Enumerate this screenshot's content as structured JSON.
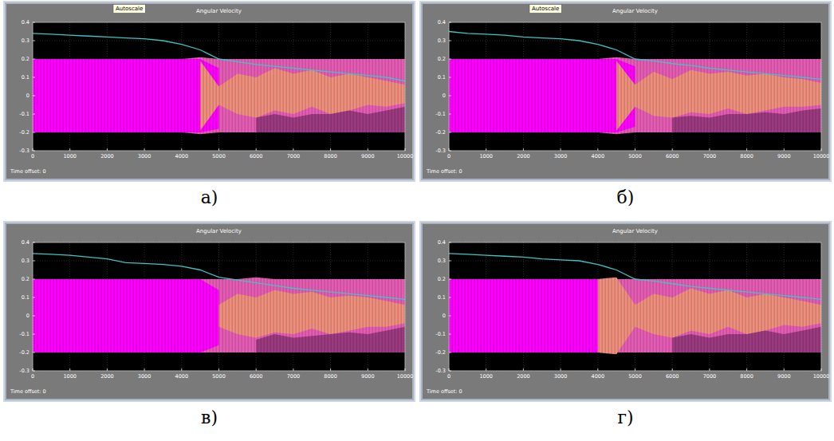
{
  "chart_data": [
    {
      "type": "line",
      "title": "Angular Velocity",
      "label": "а)",
      "annotation": "Autoscale",
      "footer_text": "Time offset:  0",
      "x": [
        0,
        500,
        1000,
        1500,
        2000,
        2500,
        3000,
        3500,
        4000,
        4500,
        5000,
        5500,
        6000,
        6500,
        7000,
        7500,
        8000,
        8500,
        9000,
        9500,
        10000
      ],
      "xlim": [
        0,
        10000
      ],
      "xticks": [
        0,
        1000,
        2000,
        3000,
        4000,
        5000,
        6000,
        7000,
        8000,
        9000,
        10000
      ],
      "ylim": [
        -0.3,
        0.4
      ],
      "yticks": [
        -0.3,
        -0.2,
        -0.1,
        0,
        0.1,
        0.2,
        0.3,
        0.4
      ],
      "grid": true,
      "series": [
        {
          "type": "area",
          "color": "#e65cb4",
          "values": [
            0.2,
            0.2,
            0.2,
            0.2,
            0.2,
            0.2,
            0.2,
            0.2,
            0.2,
            0.21,
            0.2,
            0.2,
            0.2,
            0.2,
            0.2,
            0.2,
            0.2,
            0.2,
            0.2,
            0.2,
            0.2
          ],
          "lower": [
            -0.2,
            -0.2,
            -0.2,
            -0.2,
            -0.2,
            -0.2,
            -0.2,
            -0.2,
            -0.2,
            -0.21,
            -0.2,
            -0.2,
            -0.2,
            -0.2,
            -0.2,
            -0.2,
            -0.2,
            -0.2,
            -0.2,
            -0.2,
            -0.2
          ]
        },
        {
          "type": "area",
          "color": "#ff00ff",
          "values": [
            0.2,
            0.2,
            0.2,
            0.2,
            0.2,
            0.2,
            0.2,
            0.2,
            0.2,
            0.2,
            0.15,
            null,
            null,
            null,
            null,
            null,
            null,
            null,
            null,
            null,
            null
          ],
          "lower": [
            -0.2,
            -0.2,
            -0.2,
            -0.2,
            -0.2,
            -0.2,
            -0.2,
            -0.2,
            -0.2,
            -0.2,
            -0.18,
            null,
            null,
            null,
            null,
            null,
            null,
            null,
            null,
            null,
            null
          ]
        },
        {
          "type": "area",
          "color": "#f0907c",
          "values": [
            null,
            null,
            null,
            null,
            null,
            null,
            null,
            null,
            null,
            0.19,
            0.05,
            0.12,
            0.1,
            0.15,
            0.12,
            0.14,
            0.1,
            0.12,
            0.1,
            0.08,
            0.06
          ],
          "lower": [
            null,
            null,
            null,
            null,
            null,
            null,
            null,
            null,
            null,
            -0.19,
            -0.05,
            -0.1,
            -0.12,
            -0.08,
            -0.1,
            -0.06,
            -0.1,
            -0.08,
            -0.05,
            -0.06,
            -0.04
          ]
        },
        {
          "type": "area",
          "color": "#9c3a80",
          "values": [
            null,
            null,
            null,
            null,
            null,
            null,
            null,
            null,
            null,
            null,
            null,
            null,
            -0.12,
            -0.1,
            -0.12,
            -0.1,
            -0.1,
            -0.08,
            -0.1,
            -0.08,
            -0.06
          ],
          "lower": [
            null,
            null,
            null,
            null,
            null,
            null,
            null,
            null,
            null,
            null,
            null,
            null,
            -0.2,
            -0.2,
            -0.2,
            -0.2,
            -0.2,
            -0.2,
            -0.2,
            -0.2,
            -0.2
          ]
        },
        {
          "type": "line",
          "color": "#3ec4c4",
          "values": [
            0.34,
            0.335,
            0.33,
            0.325,
            0.32,
            0.315,
            0.31,
            0.3,
            0.28,
            0.25,
            0.2,
            0.185,
            0.17,
            0.16,
            0.15,
            0.14,
            0.13,
            0.12,
            0.11,
            0.1,
            0.08
          ]
        }
      ]
    },
    {
      "type": "line",
      "title": "Angular Velocity",
      "label": "б)",
      "annotation": "Autoscale",
      "footer_text": "Time offset:  0",
      "x": [
        0,
        500,
        1000,
        1500,
        2000,
        2500,
        3000,
        3500,
        4000,
        4500,
        5000,
        5500,
        6000,
        6500,
        7000,
        7500,
        8000,
        8500,
        9000,
        9500,
        10000
      ],
      "xlim": [
        0,
        10000
      ],
      "xticks": [
        0,
        1000,
        2000,
        3000,
        4000,
        5000,
        6000,
        7000,
        8000,
        9000,
        10000
      ],
      "ylim": [
        -0.3,
        0.4
      ],
      "yticks": [
        -0.3,
        -0.2,
        -0.1,
        0,
        0.1,
        0.2,
        0.3,
        0.4
      ],
      "grid": true,
      "series": [
        {
          "type": "area",
          "color": "#e65cb4",
          "values": [
            0.2,
            0.2,
            0.2,
            0.2,
            0.2,
            0.2,
            0.2,
            0.2,
            0.2,
            0.21,
            0.2,
            0.2,
            0.2,
            0.2,
            0.2,
            0.2,
            0.2,
            0.2,
            0.2,
            0.2,
            0.2
          ],
          "lower": [
            -0.2,
            -0.2,
            -0.2,
            -0.2,
            -0.2,
            -0.2,
            -0.2,
            -0.2,
            -0.2,
            -0.21,
            -0.2,
            -0.2,
            -0.2,
            -0.2,
            -0.2,
            -0.2,
            -0.2,
            -0.2,
            -0.2,
            -0.2,
            -0.2
          ]
        },
        {
          "type": "area",
          "color": "#ff00ff",
          "values": [
            0.2,
            0.2,
            0.2,
            0.2,
            0.2,
            0.2,
            0.2,
            0.2,
            0.2,
            0.2,
            0.16,
            null,
            null,
            null,
            null,
            null,
            null,
            null,
            null,
            null,
            null
          ],
          "lower": [
            -0.2,
            -0.2,
            -0.2,
            -0.2,
            -0.2,
            -0.2,
            -0.2,
            -0.2,
            -0.2,
            -0.2,
            -0.17,
            null,
            null,
            null,
            null,
            null,
            null,
            null,
            null,
            null,
            null
          ]
        },
        {
          "type": "area",
          "color": "#f0907c",
          "values": [
            null,
            null,
            null,
            null,
            null,
            null,
            null,
            null,
            null,
            0.19,
            0.06,
            0.13,
            0.09,
            0.14,
            0.12,
            0.13,
            0.11,
            0.12,
            0.1,
            0.09,
            0.07
          ],
          "lower": [
            null,
            null,
            null,
            null,
            null,
            null,
            null,
            null,
            null,
            -0.19,
            -0.06,
            -0.11,
            -0.12,
            -0.09,
            -0.1,
            -0.07,
            -0.1,
            -0.08,
            -0.06,
            -0.06,
            -0.05
          ]
        },
        {
          "type": "area",
          "color": "#9c3a80",
          "values": [
            null,
            null,
            null,
            null,
            null,
            null,
            null,
            null,
            null,
            null,
            null,
            null,
            -0.12,
            -0.11,
            -0.12,
            -0.1,
            -0.1,
            -0.09,
            -0.1,
            -0.08,
            -0.07
          ],
          "lower": [
            null,
            null,
            null,
            null,
            null,
            null,
            null,
            null,
            null,
            null,
            null,
            null,
            -0.2,
            -0.2,
            -0.2,
            -0.2,
            -0.2,
            -0.2,
            -0.2,
            -0.2,
            -0.2
          ]
        },
        {
          "type": "line",
          "color": "#3ec4c4",
          "values": [
            0.35,
            0.34,
            0.335,
            0.33,
            0.32,
            0.315,
            0.31,
            0.3,
            0.28,
            0.25,
            0.2,
            0.19,
            0.175,
            0.165,
            0.15,
            0.14,
            0.13,
            0.12,
            0.11,
            0.1,
            0.09
          ]
        }
      ]
    },
    {
      "type": "line",
      "title": "Angular Velocity",
      "label": "в)",
      "footer_text": "Time offset:  0",
      "x": [
        0,
        500,
        1000,
        1500,
        2000,
        2500,
        3000,
        3500,
        4000,
        4500,
        5000,
        5500,
        6000,
        6500,
        7000,
        7500,
        8000,
        8500,
        9000,
        9500,
        10000
      ],
      "xlim": [
        0,
        10000
      ],
      "xticks": [
        0,
        1000,
        2000,
        3000,
        4000,
        5000,
        6000,
        7000,
        8000,
        9000,
        10000
      ],
      "ylim": [
        -0.3,
        0.4
      ],
      "yticks": [
        -0.3,
        -0.2,
        -0.1,
        0,
        0.1,
        0.2,
        0.3,
        0.4
      ],
      "grid": true,
      "series": [
        {
          "type": "area",
          "color": "#e65cb4",
          "values": [
            0.2,
            0.2,
            0.2,
            0.2,
            0.2,
            0.2,
            0.2,
            0.2,
            0.2,
            0.2,
            0.2,
            0.2,
            0.21,
            0.2,
            0.2,
            0.2,
            0.2,
            0.2,
            0.2,
            0.2,
            0.2
          ],
          "lower": [
            -0.2,
            -0.2,
            -0.2,
            -0.2,
            -0.2,
            -0.2,
            -0.2,
            -0.2,
            -0.2,
            -0.2,
            -0.2,
            -0.2,
            -0.2,
            -0.2,
            -0.2,
            -0.2,
            -0.2,
            -0.2,
            -0.2,
            -0.2,
            -0.2
          ]
        },
        {
          "type": "area",
          "color": "#ff00ff",
          "values": [
            0.2,
            0.2,
            0.2,
            0.2,
            0.2,
            0.2,
            0.2,
            0.2,
            0.2,
            0.2,
            0.14,
            null,
            null,
            null,
            null,
            null,
            null,
            null,
            null,
            null,
            null
          ],
          "lower": [
            -0.2,
            -0.2,
            -0.2,
            -0.2,
            -0.2,
            -0.2,
            -0.2,
            -0.2,
            -0.2,
            -0.2,
            -0.16,
            null,
            null,
            null,
            null,
            null,
            null,
            null,
            null,
            null,
            null
          ]
        },
        {
          "type": "area",
          "color": "#f0907c",
          "values": [
            null,
            null,
            null,
            null,
            null,
            null,
            null,
            null,
            null,
            null,
            0.06,
            0.12,
            0.1,
            0.14,
            0.12,
            0.13,
            0.1,
            0.11,
            0.1,
            0.08,
            0.06
          ],
          "lower": [
            null,
            null,
            null,
            null,
            null,
            null,
            null,
            null,
            null,
            null,
            -0.06,
            -0.1,
            -0.12,
            -0.09,
            -0.1,
            -0.07,
            -0.1,
            -0.08,
            -0.06,
            -0.06,
            -0.04
          ]
        },
        {
          "type": "area",
          "color": "#9c3a80",
          "values": [
            null,
            null,
            null,
            null,
            null,
            null,
            null,
            null,
            null,
            null,
            null,
            null,
            -0.13,
            -0.1,
            -0.12,
            -0.11,
            -0.1,
            -0.09,
            -0.1,
            -0.08,
            -0.06
          ],
          "lower": [
            null,
            null,
            null,
            null,
            null,
            null,
            null,
            null,
            null,
            null,
            null,
            null,
            -0.2,
            -0.2,
            -0.2,
            -0.2,
            -0.2,
            -0.2,
            -0.2,
            -0.2,
            -0.2
          ]
        },
        {
          "type": "line",
          "color": "#3ec4c4",
          "values": [
            0.34,
            0.335,
            0.33,
            0.32,
            0.31,
            0.29,
            0.285,
            0.28,
            0.27,
            0.25,
            0.21,
            0.195,
            0.18,
            0.165,
            0.15,
            0.14,
            0.13,
            0.12,
            0.11,
            0.1,
            0.09
          ]
        }
      ]
    },
    {
      "type": "line",
      "title": "Angular Velocity",
      "label": "г)",
      "footer_text": "Time offset:  0",
      "x": [
        0,
        500,
        1000,
        1500,
        2000,
        2500,
        3000,
        3500,
        4000,
        4500,
        5000,
        5500,
        6000,
        6500,
        7000,
        7500,
        8000,
        8500,
        9000,
        9500,
        10000
      ],
      "xlim": [
        0,
        10000
      ],
      "xticks": [
        0,
        1000,
        2000,
        3000,
        4000,
        5000,
        6000,
        7000,
        8000,
        9000,
        10000
      ],
      "ylim": [
        -0.3,
        0.4
      ],
      "yticks": [
        -0.3,
        -0.2,
        -0.1,
        0,
        0.1,
        0.2,
        0.3,
        0.4
      ],
      "grid": true,
      "series": [
        {
          "type": "area",
          "color": "#e65cb4",
          "values": [
            0.2,
            0.2,
            0.2,
            0.2,
            0.2,
            0.2,
            0.2,
            0.2,
            0.2,
            0.2,
            0.2,
            0.2,
            0.2,
            0.2,
            0.2,
            0.2,
            0.2,
            0.2,
            0.2,
            0.2,
            0.2
          ],
          "lower": [
            -0.2,
            -0.2,
            -0.2,
            -0.2,
            -0.2,
            -0.2,
            -0.2,
            -0.2,
            -0.2,
            -0.2,
            -0.2,
            -0.2,
            -0.2,
            -0.2,
            -0.2,
            -0.2,
            -0.2,
            -0.2,
            -0.2,
            -0.2,
            -0.2
          ]
        },
        {
          "type": "area",
          "color": "#ff00ff",
          "values": [
            0.2,
            0.2,
            0.2,
            0.2,
            0.2,
            0.2,
            0.2,
            0.2,
            0.2,
            null,
            null,
            null,
            null,
            null,
            null,
            null,
            null,
            null,
            null,
            null,
            null
          ],
          "lower": [
            -0.2,
            -0.2,
            -0.2,
            -0.2,
            -0.2,
            -0.2,
            -0.2,
            -0.2,
            -0.2,
            null,
            null,
            null,
            null,
            null,
            null,
            null,
            null,
            null,
            null,
            null,
            null
          ]
        },
        {
          "type": "area",
          "color": "#f0907c",
          "values": [
            null,
            null,
            null,
            null,
            null,
            null,
            null,
            null,
            0.2,
            0.21,
            0.06,
            0.12,
            0.1,
            0.15,
            0.12,
            0.14,
            0.1,
            0.12,
            0.1,
            0.08,
            0.06
          ],
          "lower": [
            null,
            null,
            null,
            null,
            null,
            null,
            null,
            null,
            -0.2,
            -0.21,
            -0.06,
            -0.1,
            -0.12,
            -0.08,
            -0.1,
            -0.06,
            -0.1,
            -0.08,
            -0.05,
            -0.06,
            -0.04
          ]
        },
        {
          "type": "area",
          "color": "#9c3a80",
          "values": [
            null,
            null,
            null,
            null,
            null,
            null,
            null,
            null,
            null,
            null,
            null,
            null,
            -0.12,
            -0.1,
            -0.12,
            -0.1,
            -0.1,
            -0.08,
            -0.1,
            -0.08,
            -0.06
          ],
          "lower": [
            null,
            null,
            null,
            null,
            null,
            null,
            null,
            null,
            null,
            null,
            null,
            null,
            -0.2,
            -0.2,
            -0.2,
            -0.2,
            -0.2,
            -0.2,
            -0.2,
            -0.2,
            -0.2
          ]
        },
        {
          "type": "line",
          "color": "#3ec4c4",
          "values": [
            0.34,
            0.335,
            0.33,
            0.325,
            0.32,
            0.31,
            0.305,
            0.3,
            0.28,
            0.25,
            0.2,
            0.19,
            0.175,
            0.16,
            0.15,
            0.14,
            0.13,
            0.12,
            0.11,
            0.1,
            0.09
          ]
        }
      ]
    }
  ]
}
